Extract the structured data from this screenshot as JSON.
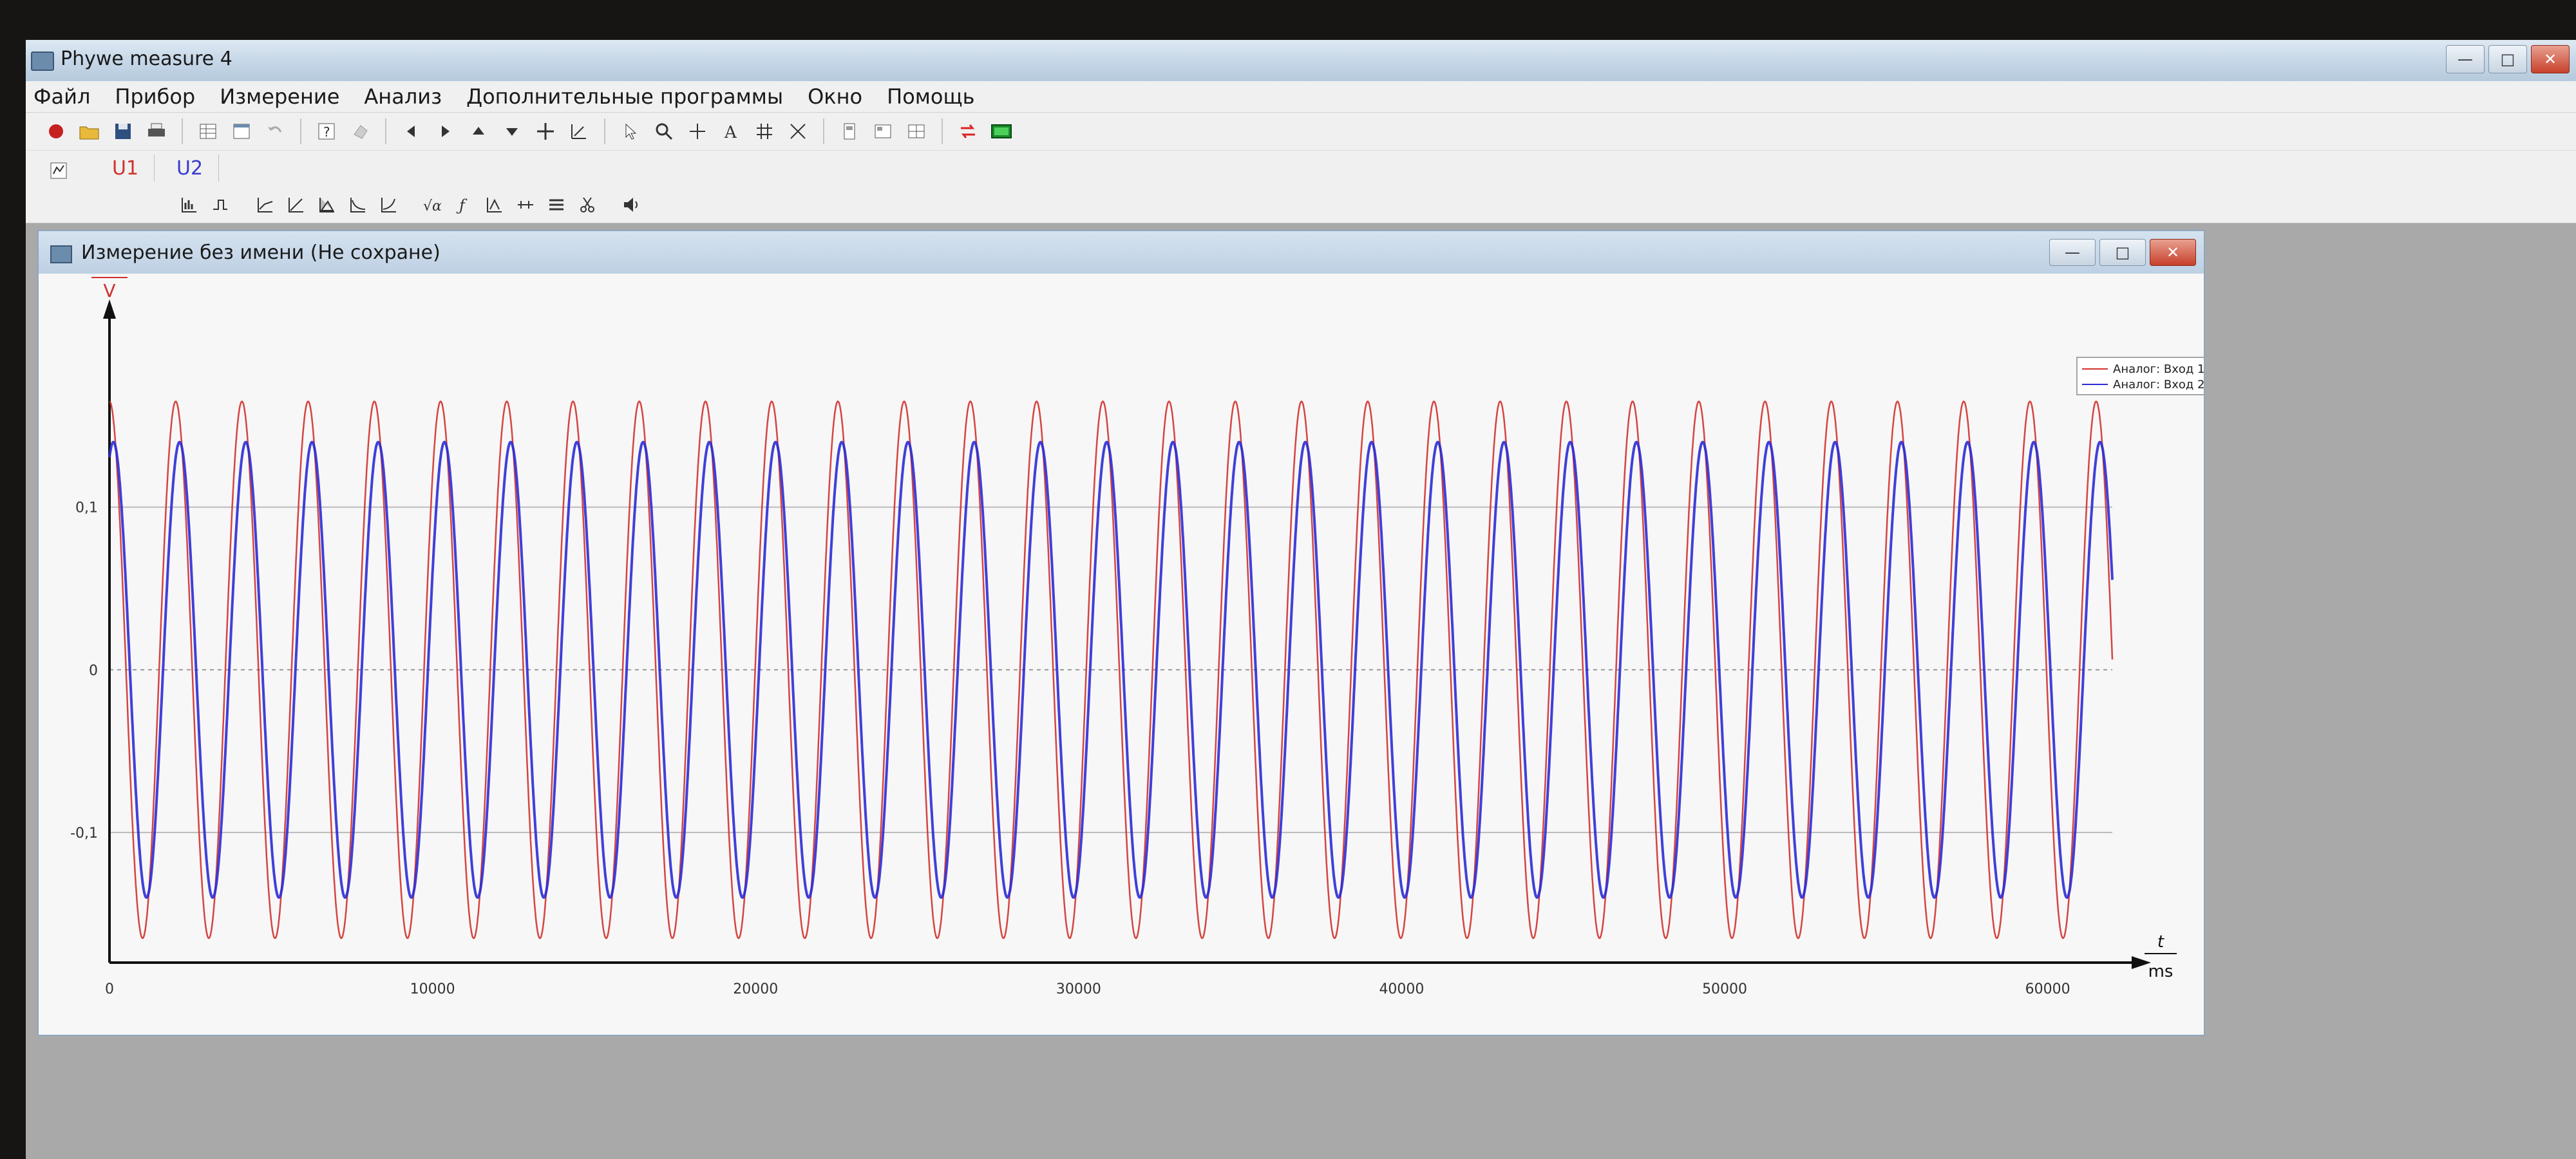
{
  "app": {
    "title": "Phywe measure 4"
  },
  "window_controls": {
    "minimize": "—",
    "maximize": "□",
    "close": "✕"
  },
  "menu": [
    "Файл",
    "Прибор",
    "Измерение",
    "Анализ",
    "Дополнительные программы",
    "Окно",
    "Помощь"
  ],
  "toolbar1_icons": [
    "record-icon",
    "open-icon",
    "save-icon",
    "print-icon",
    "table-icon",
    "window-icon",
    "undo-icon",
    "help-icon",
    "eraser-icon",
    "arrow-left-icon",
    "arrow-right-icon",
    "arrow-up-icon",
    "arrow-down-icon",
    "move-icon",
    "scale-icon",
    "cursor-icon",
    "zoom-icon",
    "crosshair-icon",
    "text-icon",
    "grid-icon",
    "curve-fit-icon",
    "layout1-icon",
    "layout2-icon",
    "layout3-icon",
    "swap-icon",
    "display-icon"
  ],
  "channels": [
    {
      "label": "U1",
      "color": "#d0312d"
    },
    {
      "label": "U2",
      "color": "#3a3ad0"
    }
  ],
  "measurement_window": {
    "title": "Измерение без имени (Не сохране)"
  },
  "chart_data": {
    "type": "line",
    "ylabel": "U1",
    "yunit": "V",
    "xlabel": "t",
    "xunit": "ms",
    "xticks": [
      "0",
      "10000",
      "20000",
      "30000",
      "40000",
      "50000",
      "60000"
    ],
    "yticks": [
      "0,1",
      "0",
      "-0,1"
    ],
    "xlim": [
      0,
      62000
    ],
    "ylim": [
      -0.18,
      0.2
    ],
    "series": [
      {
        "name": "Аналог: Вход 1",
        "color": "#d0312d",
        "amplitude_v": 0.165,
        "period_ms": 2050,
        "phase_ms": 0
      },
      {
        "name": "Аналог: Вход 2",
        "color": "#2b2bd4",
        "amplitude_v": 0.14,
        "period_ms": 2050,
        "phase_ms": 120
      }
    ],
    "legend": "top-right",
    "grid": true
  },
  "colors": {
    "accent_red": "#d0312d",
    "accent_blue": "#2b2bd4"
  }
}
